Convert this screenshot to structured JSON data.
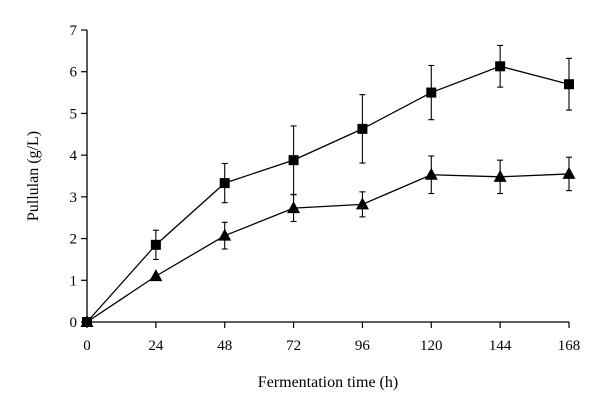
{
  "chart_data": {
    "type": "line",
    "title": "",
    "xlabel": "Fermentation time (h)",
    "ylabel": "Pullulan (g/L)",
    "xlim": [
      0,
      168
    ],
    "ylim": [
      0,
      7
    ],
    "grid": false,
    "legend": "none",
    "x_ticks": [
      0,
      24,
      48,
      72,
      96,
      120,
      144,
      168
    ],
    "y_ticks": [
      0,
      1,
      2,
      3,
      4,
      5,
      6,
      7
    ],
    "x": [
      0,
      24,
      48,
      72,
      96,
      120,
      144,
      168
    ],
    "series": [
      {
        "name": "square series",
        "marker": "square",
        "values": [
          0,
          1.85,
          3.33,
          3.88,
          4.63,
          5.5,
          6.13,
          5.7
        ],
        "errors": [
          0,
          0.35,
          0.47,
          0.82,
          0.82,
          0.65,
          0.5,
          0.62
        ]
      },
      {
        "name": "triangle series",
        "marker": "triangle",
        "values": [
          0,
          1.1,
          2.07,
          2.73,
          2.82,
          3.53,
          3.48,
          3.55
        ],
        "errors": [
          0,
          0,
          0.32,
          0.32,
          0.3,
          0.45,
          0.4,
          0.4
        ]
      }
    ],
    "colors": {
      "line": "#000000",
      "marker": "#000000"
    }
  }
}
